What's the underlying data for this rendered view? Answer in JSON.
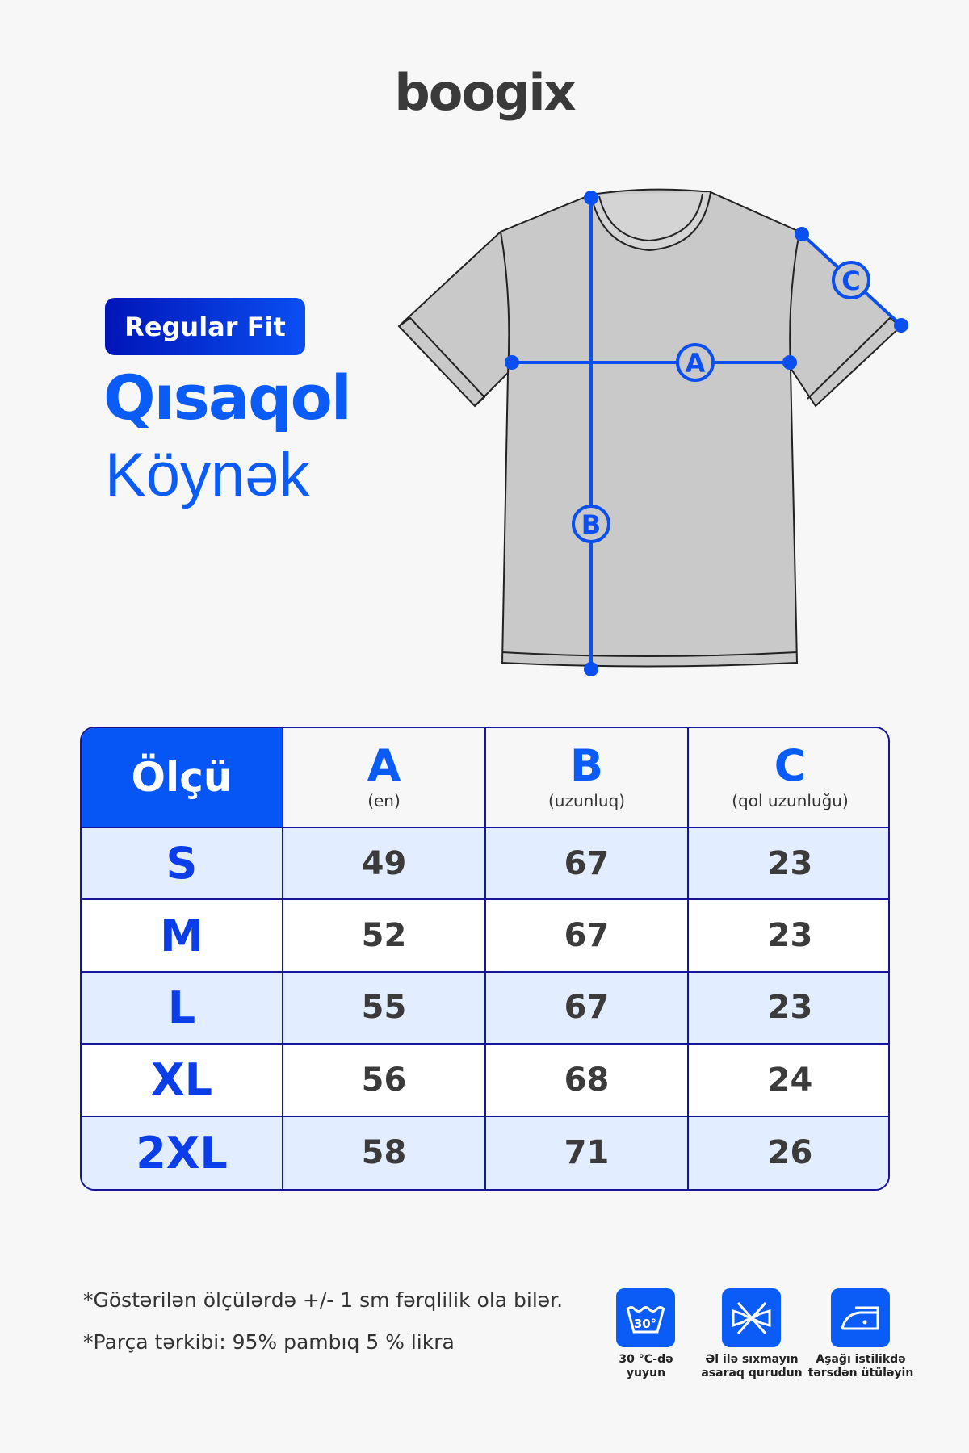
{
  "brand": {
    "logo": "boogix"
  },
  "product": {
    "fit_badge": "Regular Fit",
    "title_line1": "Qısaqol",
    "title_line2": "Köynək"
  },
  "diagram": {
    "markers": [
      "A",
      "B",
      "C"
    ],
    "line_color": "#0b4ff0",
    "shirt_color": "#c9c9c9"
  },
  "table": {
    "header": {
      "size_label": "Ölçü",
      "columns": [
        {
          "letter": "A",
          "desc": "(en)"
        },
        {
          "letter": "B",
          "desc": "(uzunluq)"
        },
        {
          "letter": "C",
          "desc": "(qol uzunluğu)"
        }
      ]
    },
    "rows": [
      {
        "size": "S",
        "a": "49",
        "b": "67",
        "c": "23"
      },
      {
        "size": "M",
        "a": "52",
        "b": "67",
        "c": "23"
      },
      {
        "size": "L",
        "a": "55",
        "b": "67",
        "c": "23"
      },
      {
        "size": "XL",
        "a": "56",
        "b": "68",
        "c": "24"
      },
      {
        "size": "2XL",
        "a": "58",
        "b": "71",
        "c": "26"
      }
    ]
  },
  "notes": [
    "*Göstərilən ölçülərdə +/- 1 sm fərqlilik ola bilər.",
    "*Parça tərkibi: 95% pambıq 5 % likra"
  ],
  "care": [
    {
      "icon": "wash-30-icon",
      "label_1": "30 °C-də",
      "label_2": "yuyun",
      "temp": "30°"
    },
    {
      "icon": "no-wring-icon",
      "label_1": "Əl ilə sıxmayın",
      "label_2": "asaraq qurudun"
    },
    {
      "icon": "iron-low-icon",
      "label_1": "Aşağı istilikdə",
      "label_2": "tərsdən ütüləyin"
    }
  ],
  "colors": {
    "accent": "#0b5cf7",
    "border": "#15159a",
    "row_alt": "#e2edff"
  }
}
